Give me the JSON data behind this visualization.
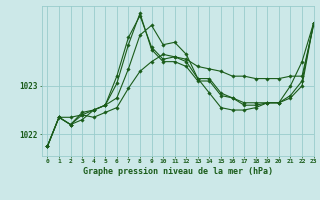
{
  "title": "Graphe pression niveau de la mer (hPa)",
  "bg_color": "#cce8e8",
  "grid_color": "#99cccc",
  "line_color": "#1a5c1a",
  "xlim": [
    -0.5,
    23
  ],
  "ylim": [
    1021.55,
    1024.65
  ],
  "yticks": [
    1022,
    1023
  ],
  "xtick_labels": [
    "0",
    "1",
    "2",
    "3",
    "4",
    "5",
    "6",
    "7",
    "8",
    "9",
    "10",
    "11",
    "12",
    "13",
    "14",
    "15",
    "16",
    "17",
    "18",
    "19",
    "20",
    "21",
    "22",
    "23"
  ],
  "series": [
    [
      1021.75,
      1022.35,
      1022.35,
      1022.4,
      1022.35,
      1022.45,
      1022.55,
      1022.95,
      1023.3,
      1023.5,
      1023.65,
      1023.6,
      1023.55,
      1023.4,
      1023.35,
      1023.3,
      1023.2,
      1023.2,
      1023.15,
      1023.15,
      1023.15,
      1023.2,
      1023.2,
      1024.25
    ],
    [
      1021.75,
      1022.35,
      1022.2,
      1022.3,
      1022.5,
      1022.6,
      1022.75,
      1023.35,
      1024.05,
      1024.25,
      1023.85,
      1023.9,
      1023.65,
      1023.15,
      1022.85,
      1022.55,
      1022.5,
      1022.5,
      1022.55,
      1022.65,
      1022.65,
      1023.0,
      1023.5,
      1024.3
    ],
    [
      1021.75,
      1022.35,
      1022.2,
      1022.4,
      1022.5,
      1022.6,
      1023.2,
      1024.0,
      1024.45,
      1023.8,
      1023.55,
      1023.6,
      1023.5,
      1023.15,
      1023.15,
      1022.85,
      1022.75,
      1022.65,
      1022.65,
      1022.65,
      1022.65,
      1022.75,
      1023.0,
      1024.3
    ],
    [
      1021.75,
      1022.35,
      1022.2,
      1022.45,
      1022.5,
      1022.6,
      1023.05,
      1023.85,
      1024.5,
      1023.75,
      1023.5,
      1023.5,
      1023.4,
      1023.1,
      1023.1,
      1022.8,
      1022.75,
      1022.6,
      1022.6,
      1022.65,
      1022.65,
      1022.8,
      1023.1,
      1024.3
    ]
  ]
}
